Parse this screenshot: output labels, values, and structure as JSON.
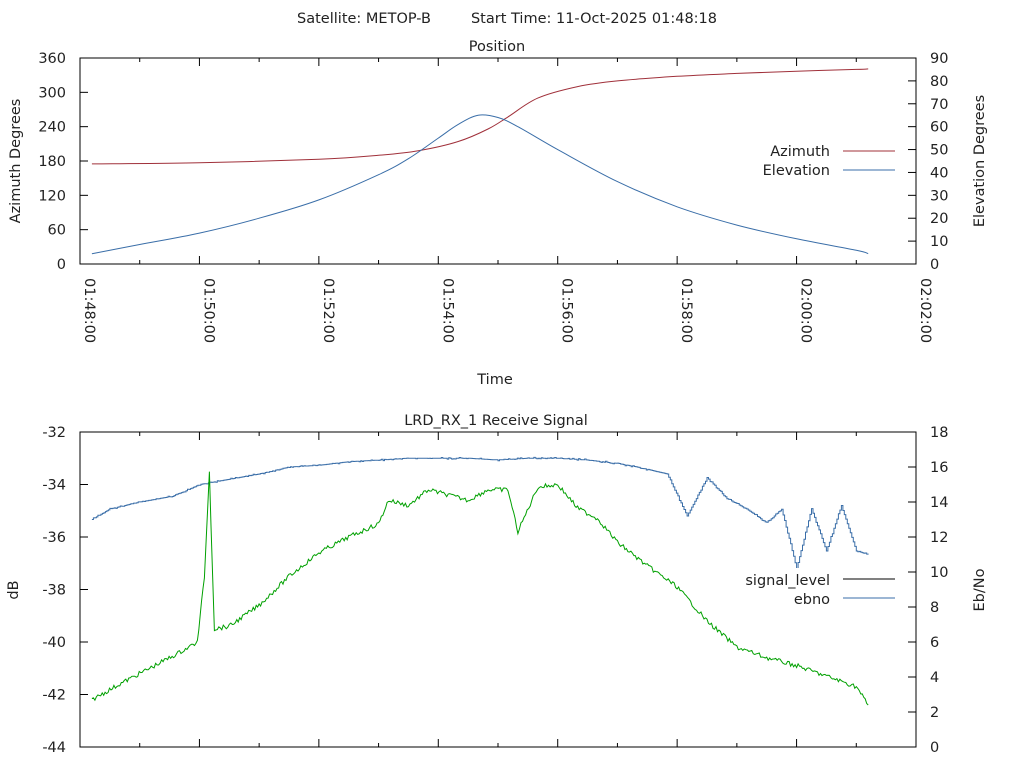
{
  "header": {
    "satellite_label": "Satellite: METOP-B",
    "start_time_label": "Start Time: 11-Oct-2025 01:48:18"
  },
  "chart_data": [
    {
      "id": "position",
      "type": "line",
      "title": "Position",
      "xlabel": "Time",
      "ylabel": "Azimuth Degrees",
      "y2label": "Elevation Degrees",
      "xlim": [
        "01:48:00",
        "02:02:00"
      ],
      "ylim": [
        0,
        360
      ],
      "y2lim": [
        0,
        90
      ],
      "x_ticks": [
        "01:48:00",
        "01:50:00",
        "01:52:00",
        "01:54:00",
        "01:56:00",
        "01:58:00",
        "02:00:00",
        "02:02:00"
      ],
      "y_ticks": [
        "0",
        "60",
        "120",
        "180",
        "240",
        "300",
        "360"
      ],
      "y2_ticks": [
        "0",
        "10",
        "20",
        "30",
        "40",
        "50",
        "60",
        "70",
        "80",
        "90"
      ],
      "legend_position": "right",
      "series": [
        {
          "name": "Azimuth",
          "axis": "left",
          "color": "#a0303a",
          "x": [
            "01:48:12",
            "01:50:00",
            "01:52:00",
            "01:53:00",
            "01:53:40",
            "01:54:20",
            "01:54:50",
            "01:55:10",
            "01:55:40",
            "01:56:20",
            "01:57:00",
            "01:58:00",
            "01:59:00",
            "02:00:00",
            "02:01:00",
            "02:01:12"
          ],
          "values": [
            175,
            177,
            183,
            190,
            198,
            214,
            236,
            257,
            290,
            310,
            320,
            328,
            333,
            337,
            340,
            341
          ]
        },
        {
          "name": "Elevation",
          "axis": "right",
          "color": "#3a6ea8",
          "x": [
            "01:48:12",
            "01:49:00",
            "01:50:00",
            "01:51:00",
            "01:52:00",
            "01:53:00",
            "01:53:30",
            "01:54:00",
            "01:54:20",
            "01:54:40",
            "01:55:00",
            "01:55:20",
            "01:56:00",
            "01:57:00",
            "01:58:00",
            "01:59:00",
            "02:00:00",
            "02:01:00",
            "02:01:12"
          ],
          "values": [
            4.5,
            8.5,
            13.5,
            20,
            28,
            39,
            46,
            55,
            61,
            65,
            64,
            60,
            50,
            36,
            25,
            17,
            11,
            6,
            4.5
          ]
        }
      ]
    },
    {
      "id": "receive-signal",
      "type": "line",
      "title": "LRD_RX_1 Receive Signal",
      "xlabel": "",
      "ylabel": "dB",
      "y2label": "Eb/No",
      "xlim": [
        "01:48:00",
        "02:02:00"
      ],
      "ylim": [
        -44,
        -32
      ],
      "y2lim": [
        0,
        18
      ],
      "y_ticks": [
        "-32",
        "-34",
        "-36",
        "-38",
        "-40",
        "-42",
        "-44"
      ],
      "y2_ticks": [
        "0",
        "2",
        "4",
        "6",
        "8",
        "10",
        "12",
        "14",
        "16",
        "18"
      ],
      "legend_position": "right",
      "series": [
        {
          "name": "signal_level",
          "axis": "left",
          "color": "#000000",
          "legend_only": true
        },
        {
          "name": "ebno",
          "axis": "right",
          "color": "#3a6ea8",
          "x": [
            "01:48:12",
            "01:48:30",
            "01:49:00",
            "01:49:30",
            "01:49:45",
            "01:50:00",
            "01:50:30",
            "01:51:00",
            "01:51:30",
            "01:52:00",
            "01:52:30",
            "01:53:00",
            "01:53:30",
            "01:54:00",
            "01:54:30",
            "01:55:00",
            "01:55:30",
            "01:56:00",
            "01:56:30",
            "01:57:00",
            "01:57:20",
            "01:57:50",
            "01:58:10",
            "01:58:30",
            "01:58:50",
            "01:59:10",
            "01:59:30",
            "01:59:45",
            "02:00:00",
            "02:00:15",
            "02:00:30",
            "02:00:45",
            "02:01:00",
            "02:01:12"
          ],
          "values": [
            13.0,
            13.6,
            14.0,
            14.3,
            14.6,
            15.0,
            15.3,
            15.6,
            16.0,
            16.1,
            16.3,
            16.4,
            16.5,
            16.5,
            16.5,
            16.4,
            16.5,
            16.5,
            16.4,
            16.2,
            16.0,
            15.6,
            13.2,
            15.4,
            14.2,
            13.6,
            12.8,
            13.6,
            10.2,
            13.6,
            11.2,
            13.8,
            11.2,
            11.0
          ]
        },
        {
          "name": "",
          "axis": "left",
          "color": "#00a000",
          "x": [
            "01:48:12",
            "01:48:40",
            "01:49:10",
            "01:49:40",
            "01:49:58",
            "01:50:05",
            "01:50:10",
            "01:50:15",
            "01:50:30",
            "01:51:00",
            "01:51:30",
            "01:52:00",
            "01:52:30",
            "01:53:00",
            "01:53:10",
            "01:53:30",
            "01:53:50",
            "01:54:10",
            "01:54:30",
            "01:54:50",
            "01:55:10",
            "01:55:20",
            "01:55:40",
            "01:56:00",
            "01:56:20",
            "01:56:40",
            "01:57:00",
            "01:57:30",
            "01:58:00",
            "01:58:30",
            "01:59:00",
            "01:59:30",
            "02:00:00",
            "02:00:30",
            "02:01:00",
            "02:01:12"
          ],
          "values": [
            -42.2,
            -41.6,
            -41.0,
            -40.4,
            -40.0,
            -37.5,
            -33.5,
            -39.5,
            -39.4,
            -38.6,
            -37.5,
            -36.6,
            -36.0,
            -35.5,
            -34.6,
            -34.8,
            -34.2,
            -34.4,
            -34.6,
            -34.2,
            -34.2,
            -35.8,
            -34.1,
            -34.0,
            -34.9,
            -35.3,
            -36.2,
            -37.1,
            -37.9,
            -39.2,
            -40.2,
            -40.6,
            -40.9,
            -41.3,
            -41.7,
            -42.4
          ]
        }
      ]
    }
  ]
}
